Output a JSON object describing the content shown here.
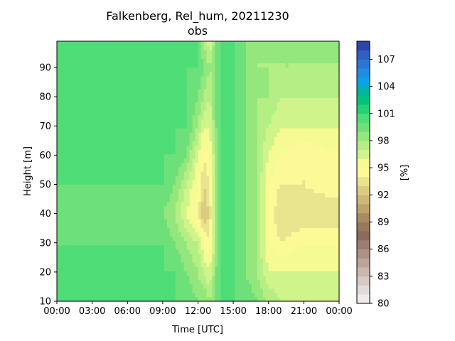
{
  "chart_data": {
    "type": "heatmap",
    "title_line1": "Falkenberg, Rel_hum, 20211230",
    "title_line2": "obs",
    "xlabel": "Time [UTC]",
    "ylabel": "Height [m]",
    "x_ticks": [
      "00:00",
      "03:00",
      "06:00",
      "09:00",
      "12:00",
      "15:00",
      "18:00",
      "21:00",
      "00:00"
    ],
    "xlim_hours": [
      0,
      24
    ],
    "ylim": [
      10,
      99
    ],
    "y_ticks": [
      10,
      20,
      30,
      40,
      50,
      60,
      70,
      80,
      90
    ],
    "colorbar": {
      "label": "[%]",
      "min": 80,
      "max": 109,
      "ticks": [
        80,
        83,
        86,
        89,
        92,
        95,
        98,
        101,
        104,
        107
      ],
      "levels": [
        {
          "from": 80,
          "color": "#efedec"
        },
        {
          "from": 81,
          "color": "#e3dcd9"
        },
        {
          "from": 82,
          "color": "#d7cac6"
        },
        {
          "from": 83,
          "color": "#c9b7b0"
        },
        {
          "from": 84,
          "color": "#bba49b"
        },
        {
          "from": 85,
          "color": "#ac9185"
        },
        {
          "from": 86,
          "color": "#9d7d70"
        },
        {
          "from": 87,
          "color": "#8b6b5d"
        },
        {
          "from": 88,
          "color": "#97795a"
        },
        {
          "from": 89,
          "color": "#a98b62"
        },
        {
          "from": 90,
          "color": "#bba36b"
        },
        {
          "from": 91,
          "color": "#cdb877"
        },
        {
          "from": 92,
          "color": "#ddcc80"
        },
        {
          "from": 93,
          "color": "#e9e48e"
        },
        {
          "from": 94,
          "color": "#fbfa96"
        },
        {
          "from": 95,
          "color": "#f5fb92"
        },
        {
          "from": 96,
          "color": "#cff48c"
        },
        {
          "from": 97,
          "color": "#b5ee84"
        },
        {
          "from": 98,
          "color": "#93e77c"
        },
        {
          "from": 99,
          "color": "#6ee07a"
        },
        {
          "from": 100,
          "color": "#4fdd78"
        },
        {
          "from": 101,
          "color": "#22d374"
        },
        {
          "from": 102,
          "color": "#00c47e"
        },
        {
          "from": 103,
          "color": "#00b4a0"
        },
        {
          "from": 104,
          "color": "#0aa2e8"
        },
        {
          "from": 105,
          "color": "#1d8ee6"
        },
        {
          "from": 106,
          "color": "#2a76d6"
        },
        {
          "from": 107,
          "color": "#2e5fc2"
        },
        {
          "from": 108,
          "color": "#2b45ad"
        }
      ]
    },
    "field_description_units": "relative humidity [%] as a function of time (hours UTC) and height (m)",
    "field_profiles_hours": [
      0,
      3,
      6,
      9,
      10,
      11,
      12,
      12.5,
      13,
      13.5,
      14,
      15,
      16,
      17,
      18,
      19,
      21,
      24
    ],
    "field_heights_m": [
      10,
      20,
      30,
      40,
      50,
      60,
      70,
      80,
      90,
      99
    ],
    "field_values": [
      [
        100,
        100,
        100,
        100,
        100,
        100,
        100,
        100,
        100,
        100
      ],
      [
        100,
        100,
        100,
        99,
        100,
        100,
        100,
        100,
        100,
        100
      ],
      [
        100,
        100,
        100,
        99,
        100,
        100,
        100,
        100,
        100,
        100
      ],
      [
        100,
        100,
        100,
        99,
        100,
        100,
        100,
        100,
        100,
        100
      ],
      [
        100,
        100,
        99,
        98,
        99,
        100,
        100,
        100,
        100,
        100
      ],
      [
        100,
        99,
        98,
        96,
        97,
        99,
        100,
        100,
        100,
        100
      ],
      [
        99,
        98,
        97,
        94,
        95,
        96,
        98,
        99,
        100,
        100
      ],
      [
        99,
        97,
        95,
        92,
        93,
        94,
        96,
        98,
        99,
        98
      ],
      [
        98,
        96,
        94,
        93,
        94,
        95,
        96,
        97,
        98,
        96
      ],
      [
        99,
        99,
        98,
        98,
        98,
        98,
        99,
        99,
        99,
        99
      ],
      [
        100,
        100,
        100,
        100,
        100,
        100,
        100,
        100,
        100,
        100
      ],
      [
        100,
        100,
        100,
        100,
        100,
        100,
        100,
        100,
        100,
        100
      ],
      [
        100,
        99,
        99,
        99,
        99,
        99,
        99,
        99,
        99,
        99
      ],
      [
        99,
        98,
        98,
        98,
        98,
        98,
        98,
        98,
        98,
        98
      ],
      [
        98,
        96,
        95,
        95,
        95,
        96,
        97,
        98,
        98,
        98
      ],
      [
        97,
        96,
        94,
        93,
        94,
        95,
        96,
        97,
        98,
        98
      ],
      [
        97,
        96,
        95,
        93,
        94,
        94,
        96,
        97,
        98,
        98
      ],
      [
        97,
        96,
        95,
        93,
        95,
        95,
        96,
        97,
        98,
        98
      ]
    ]
  }
}
